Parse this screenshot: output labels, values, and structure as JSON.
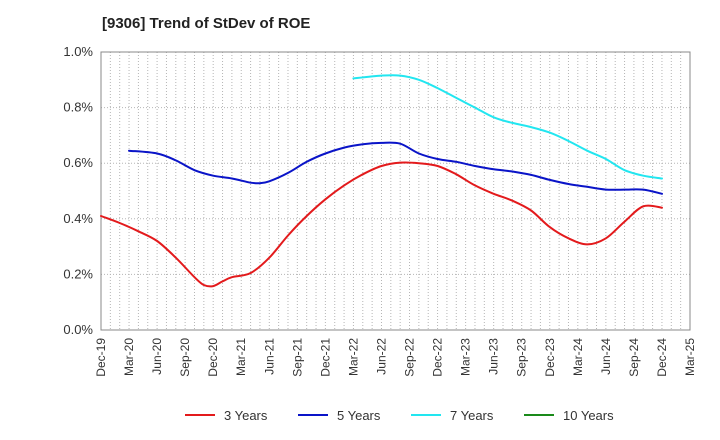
{
  "chart_data": {
    "type": "line",
    "title": "[9306]  Trend of StDev of ROE",
    "xlabel": "",
    "ylabel": "",
    "y_tick_labels": [
      "0.0%",
      "0.2%",
      "0.4%",
      "0.6%",
      "0.8%",
      "1.0%"
    ],
    "ylim": [
      0,
      1.0
    ],
    "x_tick_labels": [
      "Dec-19",
      "Mar-20",
      "Jun-20",
      "Sep-20",
      "Dec-20",
      "Mar-21",
      "Jun-21",
      "Sep-21",
      "Dec-21",
      "Mar-22",
      "Jun-22",
      "Sep-22",
      "Dec-22",
      "Mar-23",
      "Jun-23",
      "Sep-23",
      "Dec-23",
      "Mar-24",
      "Jun-24",
      "Sep-24",
      "Dec-24",
      "Mar-25"
    ],
    "x_unit": "months since first tick (Dec-19)",
    "xlim": [
      0,
      63
    ],
    "grid": true,
    "legend_position": "bottom",
    "series": [
      {
        "name": "3 Years",
        "color": "#e31a1c",
        "x": [
          0,
          2,
          4,
          6,
          8,
          10,
          11,
          12,
          13,
          14,
          16,
          18,
          20,
          22,
          24,
          26,
          28,
          30,
          32,
          34,
          36,
          38,
          40,
          42,
          44,
          46,
          48,
          50,
          52,
          54,
          56,
          58,
          60
        ],
        "y": [
          0.41,
          0.385,
          0.355,
          0.32,
          0.26,
          0.19,
          0.162,
          0.158,
          0.175,
          0.19,
          0.205,
          0.26,
          0.34,
          0.41,
          0.47,
          0.52,
          0.56,
          0.59,
          0.602,
          0.6,
          0.59,
          0.56,
          0.52,
          0.49,
          0.465,
          0.43,
          0.37,
          0.33,
          0.308,
          0.33,
          0.39,
          0.445,
          0.44
        ]
      },
      {
        "name": "5 Years",
        "color": "#0a14c8",
        "x": [
          3,
          6,
          8,
          10,
          12,
          14,
          16,
          17,
          18,
          20,
          22,
          24,
          26,
          28,
          30,
          32,
          34,
          36,
          38,
          40,
          42,
          44,
          46,
          48,
          50,
          52,
          54,
          56,
          58,
          60
        ],
        "y": [
          0.645,
          0.635,
          0.61,
          0.575,
          0.555,
          0.545,
          0.53,
          0.528,
          0.535,
          0.565,
          0.605,
          0.635,
          0.656,
          0.668,
          0.673,
          0.67,
          0.635,
          0.615,
          0.605,
          0.59,
          0.578,
          0.57,
          0.558,
          0.54,
          0.525,
          0.515,
          0.505,
          0.505,
          0.505,
          0.49
        ]
      },
      {
        "name": "7 Years",
        "color": "#22e6f0",
        "x": [
          27,
          30,
          32,
          34,
          36,
          38,
          40,
          42,
          44,
          46,
          48,
          50,
          52,
          54,
          56,
          58,
          60
        ],
        "y": [
          0.905,
          0.915,
          0.915,
          0.9,
          0.87,
          0.835,
          0.8,
          0.765,
          0.745,
          0.73,
          0.71,
          0.68,
          0.645,
          0.615,
          0.575,
          0.555,
          0.545
        ]
      },
      {
        "name": "10 Years",
        "color": "#1a8a1a",
        "x": [],
        "y": []
      }
    ]
  }
}
